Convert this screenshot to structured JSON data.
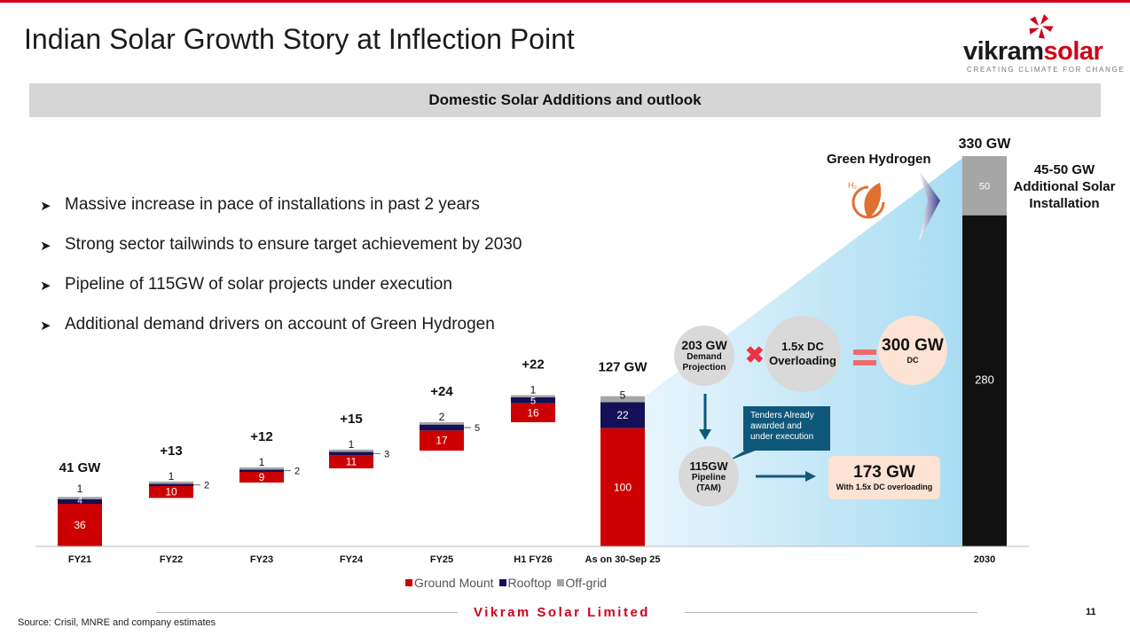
{
  "header": {
    "title": "Indian Solar Growth Story at Inflection Point",
    "logo_word_dark": "vikram",
    "logo_word_red": "solar",
    "logo_tagline": "CREATING CLIMATE FOR CHANGE"
  },
  "banner": {
    "text": "Domestic Solar Additions and outlook"
  },
  "bullets": [
    "Massive increase in pace of installations in past 2 years",
    "Strong sector tailwinds to ensure target achievement by 2030",
    "Pipeline of 115GW of solar projects under execution",
    "Additional demand drivers on account of Green Hydrogen"
  ],
  "chart_data": {
    "type": "bar",
    "subtype": "stacked-waterfall",
    "title": "Domestic Solar Additions and outlook",
    "categories": [
      "FY21",
      "FY22",
      "FY23",
      "FY24",
      "FY25",
      "H1 FY26",
      "As on 30-Sep 25",
      "2030"
    ],
    "series": [
      {
        "name": "Ground Mount",
        "values": [
          36,
          10,
          9,
          11,
          17,
          16,
          100,
          null
        ]
      },
      {
        "name": "Rooftop",
        "values": [
          4,
          2,
          2,
          3,
          5,
          5,
          22,
          null
        ]
      },
      {
        "name": "Off-grid",
        "values": [
          1,
          1,
          1,
          1,
          2,
          1,
          5,
          null
        ]
      }
    ],
    "increments": [
      null,
      "+13",
      "+12",
      "+15",
      "+24",
      "+22",
      null,
      null
    ],
    "totals_labels": [
      "41 GW",
      null,
      null,
      null,
      null,
      null,
      "127 GW",
      "330 GW"
    ],
    "side_labels": [
      null,
      "2",
      "2",
      "3",
      "5",
      null,
      null,
      null
    ],
    "target_2030": {
      "base": 280,
      "additional": 50,
      "total_label": "330 GW"
    },
    "ylim": [
      0,
      330
    ],
    "legend": [
      "Ground Mount",
      "Rooftop",
      "Off-grid"
    ],
    "colors": {
      "ground": "#cc0000",
      "rooftop": "#131057",
      "offgrid": "#a6a6a6",
      "target_base": "#111111"
    }
  },
  "outlook": {
    "green_hydrogen": "Green Hydrogen",
    "h2": "H₂",
    "additional": "45-50 GW Additional Solar Installation",
    "demand_value": "203 GW",
    "demand_label": "Demand Projection",
    "overloading": "1.5x DC Overloading",
    "dc_value": "300 GW",
    "dc_label": "DC",
    "pipeline_value": "115GW",
    "pipeline_label": "Pipeline (TAM)",
    "tenders": "Tenders Already awarded and under execution",
    "box_value": "173 GW",
    "box_label": "With 1.5x DC overloading"
  },
  "footer": {
    "source": "Source: Crisil, MNRE and company estimates",
    "company": "Vikram Solar Limited",
    "page": "11"
  }
}
